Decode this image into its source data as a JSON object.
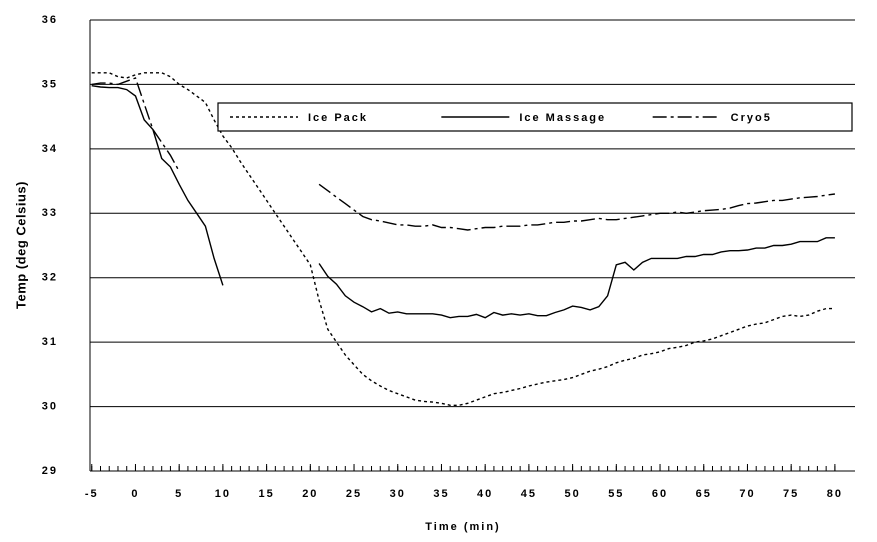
{
  "chart_data": {
    "type": "line",
    "xlabel": "Time (min)",
    "ylabel": "Temp (deg Celsius)",
    "x": [
      -5,
      -4,
      -3,
      -2,
      -1,
      0,
      1,
      2,
      3,
      4,
      5,
      6,
      7,
      8,
      9,
      10,
      11,
      12,
      13,
      14,
      15,
      16,
      17,
      18,
      19,
      20,
      21,
      22,
      23,
      24,
      25,
      26,
      27,
      28,
      29,
      30,
      31,
      32,
      33,
      34,
      35,
      36,
      37,
      38,
      39,
      40,
      41,
      42,
      43,
      44,
      45,
      46,
      47,
      48,
      49,
      50,
      51,
      52,
      53,
      54,
      55,
      56,
      57,
      58,
      59,
      60,
      61,
      62,
      63,
      64,
      65,
      66,
      67,
      68,
      69,
      70,
      71,
      72,
      73,
      74,
      75,
      76,
      77,
      78,
      79,
      80
    ],
    "series": [
      {
        "name": "Ice Pack",
        "color": "#000000",
        "style": "dotted",
        "values": [
          35.18,
          35.18,
          35.18,
          35.12,
          35.1,
          35.15,
          35.18,
          35.18,
          35.18,
          35.12,
          35.0,
          34.92,
          34.82,
          34.72,
          34.45,
          34.2,
          34.02,
          33.8,
          33.6,
          33.4,
          33.2,
          33.0,
          32.8,
          32.6,
          32.4,
          32.2,
          31.65,
          31.2,
          31.0,
          30.8,
          30.65,
          30.5,
          30.4,
          30.32,
          30.25,
          30.2,
          30.15,
          30.1,
          30.08,
          30.07,
          30.05,
          30.02,
          30.02,
          30.05,
          30.1,
          30.15,
          30.2,
          30.22,
          30.25,
          30.28,
          30.32,
          30.35,
          30.38,
          30.4,
          30.42,
          30.45,
          30.5,
          30.55,
          30.58,
          30.62,
          30.68,
          30.72,
          30.75,
          30.8,
          30.82,
          30.85,
          30.9,
          30.92,
          30.95,
          31.0,
          31.02,
          31.05,
          31.1,
          31.15,
          31.2,
          31.25,
          31.28,
          31.3,
          31.35,
          31.4,
          31.42,
          31.4,
          31.42,
          31.48,
          31.52,
          31.52
        ]
      },
      {
        "name": "Ice Massage",
        "color": "#000000",
        "style": "solid",
        "values": [
          34.98,
          34.96,
          34.95,
          34.95,
          34.92,
          34.82,
          34.45,
          34.3,
          33.85,
          33.72,
          33.45,
          33.2,
          33.0,
          32.8,
          32.3,
          31.88,
          null,
          null,
          null,
          null,
          null,
          null,
          null,
          null,
          null,
          null,
          32.22,
          32.02,
          31.9,
          31.72,
          31.62,
          31.55,
          31.47,
          31.52,
          31.45,
          31.47,
          31.44,
          31.44,
          31.44,
          31.44,
          31.42,
          31.38,
          31.4,
          31.4,
          31.43,
          31.38,
          31.46,
          31.42,
          31.44,
          31.42,
          31.44,
          31.41,
          31.41,
          31.46,
          31.5,
          31.56,
          31.54,
          31.5,
          31.55,
          31.72,
          32.2,
          32.24,
          32.12,
          32.24,
          32.3,
          32.3,
          32.3,
          32.3,
          32.33,
          32.33,
          32.36,
          32.36,
          32.4,
          32.42,
          32.42,
          32.43,
          32.46,
          32.46,
          32.5,
          32.5,
          32.52,
          32.56,
          32.56,
          32.56,
          32.62,
          32.62
        ]
      },
      {
        "name": "Cryo5",
        "color": "#000000",
        "style": "dashdot",
        "values": [
          35.0,
          35.02,
          35.02,
          35.0,
          35.05,
          35.1,
          34.7,
          34.3,
          34.1,
          33.9,
          33.65,
          null,
          null,
          null,
          null,
          null,
          null,
          null,
          null,
          null,
          null,
          null,
          null,
          null,
          null,
          null,
          33.45,
          33.35,
          33.25,
          33.15,
          33.05,
          32.95,
          32.9,
          32.88,
          32.85,
          32.82,
          32.82,
          32.8,
          32.8,
          32.82,
          32.78,
          32.78,
          32.76,
          32.74,
          32.76,
          32.78,
          32.78,
          32.8,
          32.8,
          32.8,
          32.82,
          32.82,
          32.84,
          32.86,
          32.86,
          32.88,
          32.88,
          32.9,
          32.92,
          32.9,
          32.9,
          32.92,
          32.94,
          32.96,
          32.98,
          33.0,
          33.0,
          33.02,
          33.0,
          33.02,
          33.04,
          33.05,
          33.06,
          33.08,
          33.12,
          33.15,
          33.16,
          33.18,
          33.2,
          33.2,
          33.22,
          33.24,
          33.25,
          33.26,
          33.28,
          33.3
        ]
      }
    ],
    "xlim": [
      -5.2,
      82.3
    ],
    "xticks": [
      -5,
      0,
      5,
      10,
      15,
      20,
      25,
      30,
      35,
      40,
      45,
      50,
      55,
      60,
      65,
      70,
      75,
      80
    ],
    "ylim": [
      29,
      36
    ],
    "yticks": [
      29,
      30,
      31,
      32,
      33,
      34,
      35,
      36
    ],
    "grid": true,
    "legend": "upper right"
  }
}
